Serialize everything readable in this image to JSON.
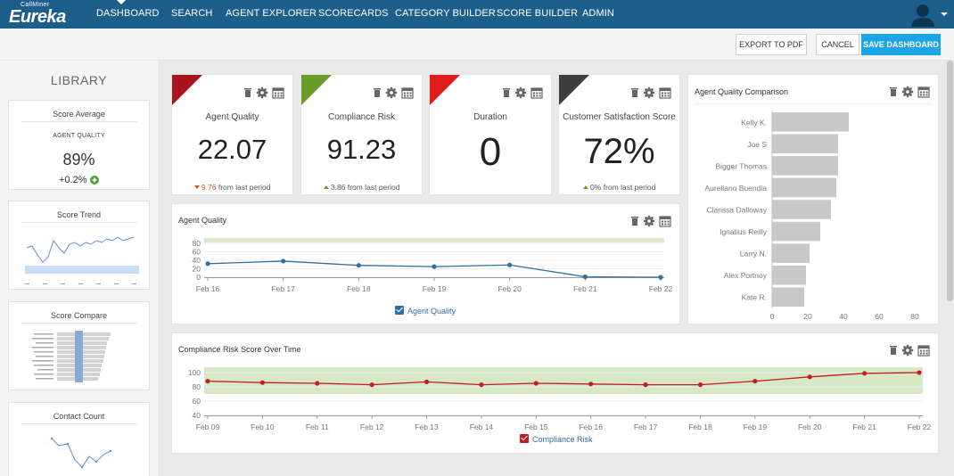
{
  "app": {
    "logo_sub": "CallMiner",
    "logo_main": "Eureka"
  },
  "nav": {
    "items": [
      "DASHBOARD",
      "SEARCH",
      "AGENT EXPLORER",
      "SCORECARDS",
      "CATEGORY BUILDER",
      "SCORE BUILDER",
      "ADMIN"
    ],
    "active": "DASHBOARD"
  },
  "actions": {
    "export_label": "EXPORT TO PDF",
    "cancel_label": "CANCEL",
    "save_label": "SAVE DASHBOARD"
  },
  "library": {
    "title": "LIBRARY",
    "score_average": {
      "title": "Score Average",
      "metric": "AGENT QUALITY",
      "value": "89%",
      "delta": "+0.2%"
    },
    "score_trend": {
      "title": "Score Trend"
    },
    "score_compare": {
      "title": "Score Compare"
    },
    "contact_count": {
      "title": "Contact Count"
    }
  },
  "kpis": [
    {
      "label": "Agent Quality",
      "value": "22.07",
      "delta_value": "9.76",
      "delta_text": "from last period",
      "direction": "down",
      "color": "#a8141c"
    },
    {
      "label": "Compliance Risk",
      "value": "91.23",
      "delta_value": "3.86",
      "delta_text": "from last period",
      "direction": "up",
      "color": "#6a9a2c"
    },
    {
      "label": "Duration",
      "value": "0",
      "delta_value": "",
      "delta_text": "",
      "direction": "",
      "color": "#e01c1c"
    },
    {
      "label": "Customer Satisfaction Score",
      "value": "72%",
      "delta_value": "0%",
      "delta_text": "from last period",
      "direction": "up",
      "color": "#3e3e3e"
    }
  ],
  "agent_quality_chart": {
    "title": "Agent Quality",
    "legend": "Agent Quality",
    "chart_data": {
      "type": "line",
      "x": [
        "Feb 16",
        "Feb 17",
        "Feb 18",
        "Feb 19",
        "Feb 20",
        "Feb 21",
        "Feb 22"
      ],
      "series": [
        {
          "name": "Agent Quality",
          "values": [
            32,
            38,
            28,
            25,
            29,
            1,
            0
          ]
        }
      ],
      "ylim": [
        0,
        80
      ],
      "yticks": [
        0,
        20,
        40,
        60,
        80
      ],
      "band": [
        82,
        100
      ],
      "line_color": "#2f6fa3",
      "band_color": "#dbe9c9"
    }
  },
  "comparison_chart": {
    "title": "Agent Quality Comparison",
    "chart_data": {
      "type": "bar",
      "categories": [
        "Kelly K.",
        "Joe S",
        "Bigger Thomas",
        "Aureliano Buendia",
        "Clarissa Dalloway",
        "Ignatius Reilly",
        "Larry N.",
        "Alex Portnoy",
        "Kate R."
      ],
      "values": [
        43,
        37,
        37,
        36,
        33,
        27,
        21,
        19,
        18
      ],
      "xlim": [
        0,
        90
      ],
      "xticks": [
        0,
        20,
        40,
        60,
        80
      ],
      "band": [
        74,
        90
      ],
      "bar_color": "#c8c8c8",
      "band_color": "#98bf7a"
    }
  },
  "compliance_chart": {
    "title": "Compliance Risk Score Over Time",
    "legend": "Compliance Risk",
    "chart_data": {
      "type": "line",
      "x": [
        "Feb 09",
        "Feb 10",
        "Feb 11",
        "Feb 12",
        "Feb 13",
        "Feb 14",
        "Feb 15",
        "Feb 16",
        "Feb 17",
        "Feb 18",
        "Feb 19",
        "Feb 20",
        "Feb 21",
        "Feb 22"
      ],
      "series": [
        {
          "name": "Compliance Risk",
          "values": [
            88,
            86,
            85,
            83,
            87,
            83,
            85,
            84,
            83,
            83,
            88,
            94,
            99,
            100
          ]
        }
      ],
      "ylim": [
        40,
        100
      ],
      "yticks": [
        40,
        60,
        80,
        100
      ],
      "band": [
        70,
        110
      ],
      "line_color": "#c41d1d",
      "band_color": "#d6e8c6"
    }
  },
  "colors": {
    "nav_bg": "#1d5f8a",
    "primary": "#1ba4e6",
    "up_arrow": "#6a9a2c",
    "down_arrow": "#c5581f"
  }
}
